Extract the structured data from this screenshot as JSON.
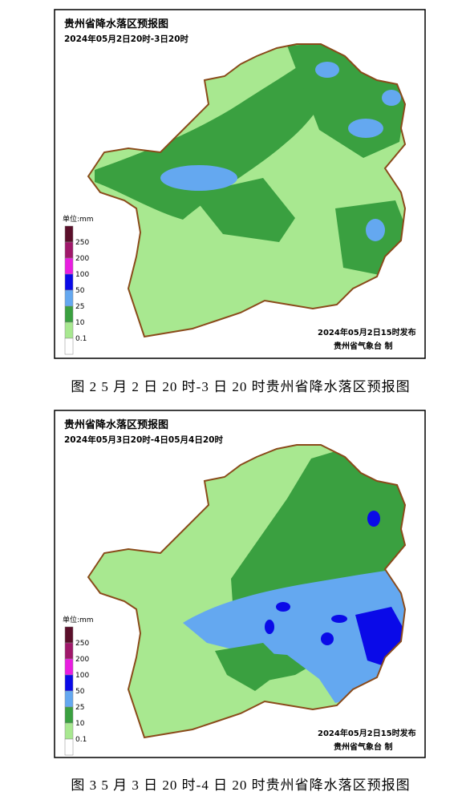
{
  "figures": [
    {
      "title": "贵州省降水落区预报图",
      "subtitle": "2024年05月2日20时-3日20时",
      "unit": "单位:mm",
      "legend_labels": [
        "250",
        "200",
        "100",
        "50",
        "25",
        "10",
        "0.1"
      ],
      "legend_colors": [
        "#5a0f2a",
        "#a0186a",
        "#e81ee0",
        "#0a0ae8",
        "#64a8f0",
        "#3aa040",
        "#a8e890",
        "#ffffff"
      ],
      "issued": "2024年05月2日15时发布",
      "agency": "贵州省气象台 制",
      "caption": "图 2  5 月 2 日 20 时-3 日 20 时贵州省降水落区预报图"
    },
    {
      "title": "贵州省降水落区预报图",
      "subtitle": "2024年05月3日20时-4日05月4日20时",
      "unit": "单位:mm",
      "legend_labels": [
        "250",
        "200",
        "100",
        "50",
        "25",
        "10",
        "0.1"
      ],
      "legend_colors": [
        "#5a0f2a",
        "#a0186a",
        "#e81ee0",
        "#0a0ae8",
        "#64a8f0",
        "#3aa040",
        "#a8e890",
        "#ffffff"
      ],
      "issued": "2024年05月2日15时发布",
      "agency": "贵州省气象台 制",
      "caption": "图 3  5 月 3 日 20 时-4 日 20 时贵州省降水落区预报图"
    }
  ]
}
